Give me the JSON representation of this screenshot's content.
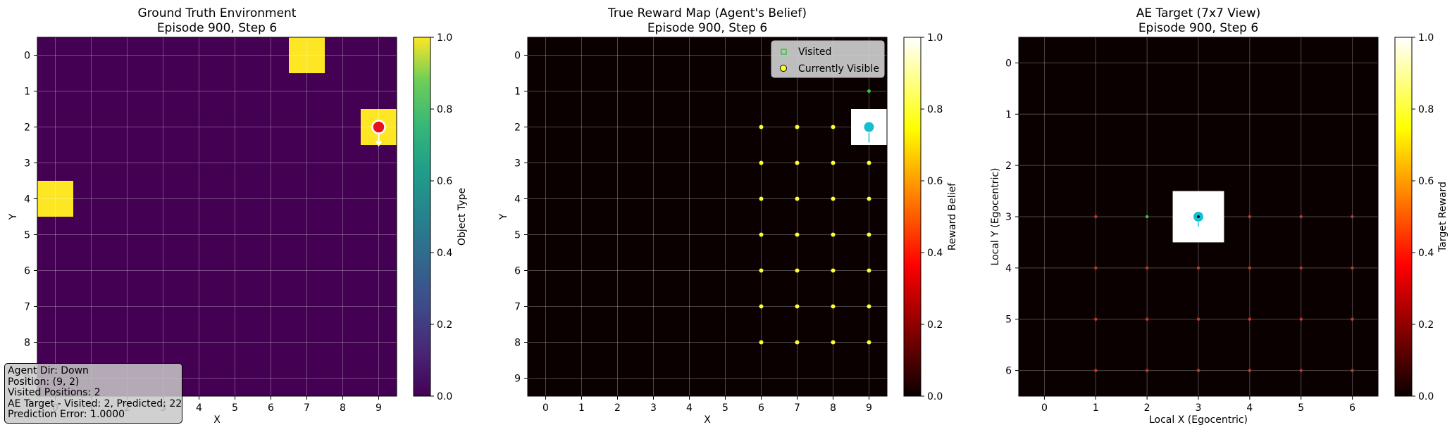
{
  "panels": [
    {
      "title1": "Ground Truth Environment",
      "title2": "Episode 900, Step 6",
      "xlabel": "X",
      "ylabel": "Y",
      "cbar_label": "Object Type",
      "cbar_ticks": [
        "0.0",
        "0.2",
        "0.4",
        "0.6",
        "0.8",
        "1.0"
      ],
      "x_ticks": [
        "0",
        "1",
        "2",
        "3",
        "4",
        "5",
        "6",
        "7",
        "8",
        "9"
      ],
      "y_ticks": [
        "0",
        "1",
        "2",
        "3",
        "4",
        "5",
        "6",
        "7",
        "8",
        "9"
      ]
    },
    {
      "title1": "True Reward Map (Agent's Belief)",
      "title2": "Episode 900, Step 6",
      "xlabel": "X",
      "ylabel": "Y",
      "cbar_label": "Reward Belief",
      "cbar_ticks": [
        "0.0",
        "0.2",
        "0.4",
        "0.6",
        "0.8",
        "1.0"
      ],
      "x_ticks": [
        "0",
        "1",
        "2",
        "3",
        "4",
        "5",
        "6",
        "7",
        "8",
        "9"
      ],
      "y_ticks": [
        "0",
        "1",
        "2",
        "3",
        "4",
        "5",
        "6",
        "7",
        "8",
        "9"
      ],
      "legend": [
        "Visited",
        "Currently Visible"
      ]
    },
    {
      "title1": "AE Target (7x7 View)",
      "title2": "Episode 900, Step 6",
      "xlabel": "Local X (Egocentric)",
      "ylabel": "Local Y (Egocentric)",
      "cbar_label": "Target Reward",
      "cbar_ticks": [
        "0.0",
        "0.2",
        "0.4",
        "0.6",
        "0.8",
        "1.0"
      ],
      "x_ticks": [
        "0",
        "1",
        "2",
        "3",
        "4",
        "5",
        "6"
      ],
      "y_ticks": [
        "0",
        "1",
        "2",
        "3",
        "4",
        "5",
        "6"
      ]
    }
  ],
  "info_box": [
    "Agent Dir: Down",
    "Position: (9, 2)",
    "Visited Positions: 2",
    "AE Target - Visited: 2, Predicted: 22",
    "Prediction Error: 1.0000"
  ],
  "colors": {
    "viridis_low": "#440154",
    "viridis_high": "#fde725",
    "hot_low": "#0b0000",
    "hot_high": "#ffffff",
    "agent": "#e8101c",
    "visible": "#ffff2e",
    "visited": "#2ecc40",
    "cyan": "#17becf",
    "red_dot": "#c0392b"
  },
  "chart_data": [
    {
      "type": "heatmap",
      "title": "Ground Truth Environment\nEpisode 900, Step 6",
      "xlabel": "X",
      "ylabel": "Y",
      "colorbar_label": "Object Type",
      "colormap": "viridis",
      "clim": [
        0,
        1
      ],
      "grid_size": [
        10,
        10
      ],
      "cells_value_1": [
        [
          7,
          0
        ],
        [
          9,
          2
        ],
        [
          0,
          4
        ]
      ],
      "other_cells_value": 0,
      "agent_position": [
        9,
        2
      ],
      "agent_direction": "down"
    },
    {
      "type": "heatmap",
      "title": "True Reward Map (Agent's Belief)\nEpisode 900, Step 6",
      "xlabel": "X",
      "ylabel": "Y",
      "colorbar_label": "Reward Belief",
      "colormap": "hot",
      "clim": [
        0,
        1
      ],
      "grid_size": [
        10,
        10
      ],
      "cells_value_1": [
        [
          9,
          2
        ]
      ],
      "other_cells_value": 0,
      "agent_position": [
        9,
        2
      ],
      "series": [
        {
          "name": "Visited",
          "points": [
            [
              9,
              1
            ],
            [
              9,
              2
            ]
          ]
        },
        {
          "name": "Currently Visible",
          "x_range": [
            6,
            9
          ],
          "y_range": [
            2,
            8
          ]
        }
      ],
      "legend_position": "top-right"
    },
    {
      "type": "heatmap",
      "title": "AE Target (7x7 View)\nEpisode 900, Step 6",
      "xlabel": "Local X (Egocentric)",
      "ylabel": "Local Y (Egocentric)",
      "colorbar_label": "Target Reward",
      "colormap": "hot",
      "clim": [
        0,
        1
      ],
      "grid_size": [
        7,
        7
      ],
      "cells_value_1": [
        [
          3,
          3
        ]
      ],
      "other_cells_value": 0,
      "agent_position": [
        3,
        3
      ],
      "visited_points": [
        [
          2,
          3
        ]
      ],
      "predicted_points_x_range": [
        1,
        6
      ],
      "predicted_points_y_range": [
        3,
        6
      ]
    }
  ]
}
